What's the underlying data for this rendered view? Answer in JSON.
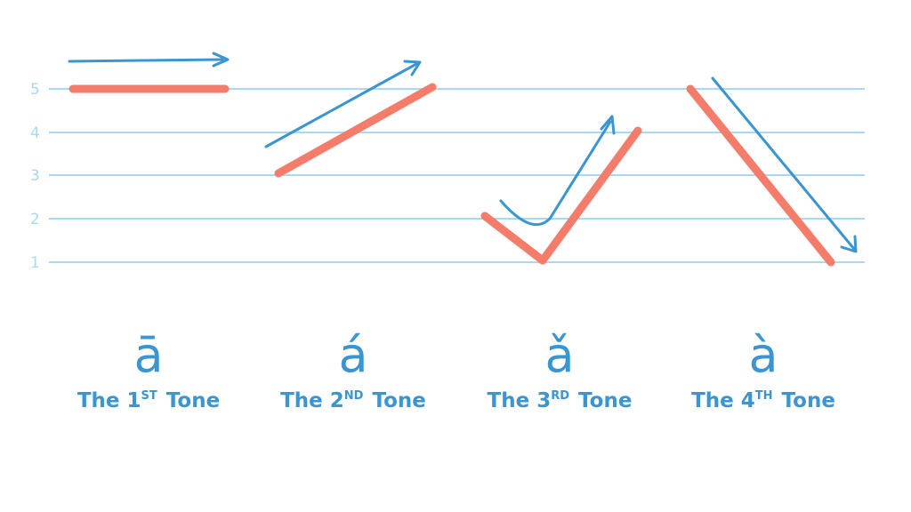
{
  "scale": {
    "levels": [
      "1",
      "2",
      "3",
      "4",
      "5"
    ]
  },
  "tones": [
    {
      "char": "ā",
      "label_prefix": "The 1",
      "label_suffix": "ST",
      "label_end": " Tone",
      "contour": [
        5,
        5
      ]
    },
    {
      "char": "á",
      "label_prefix": "The 2",
      "label_suffix": "ND",
      "label_end": " Tone",
      "contour": [
        3,
        5
      ]
    },
    {
      "char": "ǎ",
      "label_prefix": "The 3",
      "label_suffix": "RD",
      "label_end": " Tone",
      "contour": [
        2,
        1,
        4
      ]
    },
    {
      "char": "à",
      "label_prefix": "The 4",
      "label_suffix": "TH",
      "label_end": " Tone",
      "contour": [
        5,
        1
      ]
    }
  ],
  "colors": {
    "contour": "#f47c6b",
    "arrow": "#3a95d0",
    "grid": "#a9d9ef",
    "text": "#3a95d0"
  }
}
